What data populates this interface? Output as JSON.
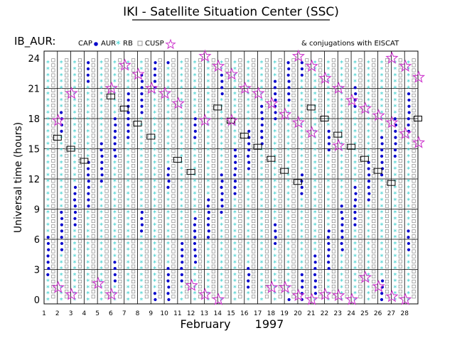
{
  "chart_data": {
    "type": "scatter",
    "title": "IKI - Satellite Situation Center (SSC)",
    "subtitle": "IB_AUR:",
    "ylabel": "Universal time (hours)",
    "xlabel": "February",
    "year": "1997",
    "ylim": [
      0,
      24
    ],
    "xlim": [
      1,
      28
    ],
    "yticks": [
      "0",
      "3",
      "6",
      "9",
      "12",
      "15",
      "18",
      "21",
      "24"
    ],
    "xticks": [
      "1",
      "2",
      "3",
      "4",
      "5",
      "6",
      "7",
      "8",
      "9",
      "10",
      "11",
      "12",
      "13",
      "14",
      "15",
      "16",
      "17",
      "18",
      "19",
      "20",
      "21",
      "22",
      "23",
      "24",
      "25",
      "26",
      "27",
      "28"
    ],
    "legend": {
      "items": [
        {
          "label": "CAP",
          "marker": "dot",
          "color": "#0000cc"
        },
        {
          "label": "AUR",
          "marker": "asterisk",
          "color": "#33cccc"
        },
        {
          "label": "RB",
          "marker": "square",
          "color": "#888888"
        },
        {
          "label": "CUSP",
          "marker": "star",
          "color": "#cc33cc"
        }
      ],
      "conjunction_note": "& conjugations with EISCAT",
      "position": "top"
    },
    "colors": {
      "cap": "#0000cc",
      "aur": "#33cccc",
      "rb": "#888888",
      "cusp": "#cc33cc"
    },
    "cusp_stars": [
      {
        "day": 1.5,
        "t": 17.8
      },
      {
        "day": 1.5,
        "t": 1.2
      },
      {
        "day": 2.5,
        "t": 20.5
      },
      {
        "day": 2.5,
        "t": 0.5
      },
      {
        "day": 4.5,
        "t": 1.6
      },
      {
        "day": 5.5,
        "t": 0.5
      },
      {
        "day": 5.5,
        "t": 21.0
      },
      {
        "day": 6.5,
        "t": 23.3
      },
      {
        "day": 7.5,
        "t": 22.4
      },
      {
        "day": 8.5,
        "t": 21.0
      },
      {
        "day": 9.5,
        "t": 20.5
      },
      {
        "day": 10.5,
        "t": 19.5
      },
      {
        "day": 11.5,
        "t": 1.4
      },
      {
        "day": 12.5,
        "t": 24.2
      },
      {
        "day": 12.5,
        "t": 17.8
      },
      {
        "day": 12.5,
        "t": 0.5
      },
      {
        "day": 13.5,
        "t": 23.2
      },
      {
        "day": 13.5,
        "t": 0.0
      },
      {
        "day": 14.5,
        "t": 22.4
      },
      {
        "day": 14.5,
        "t": 17.8
      },
      {
        "day": 15.5,
        "t": 21.0
      },
      {
        "day": 16.5,
        "t": 20.5
      },
      {
        "day": 17.5,
        "t": 19.5
      },
      {
        "day": 17.5,
        "t": 1.2
      },
      {
        "day": 18.5,
        "t": 18.4
      },
      {
        "day": 18.5,
        "t": 1.2
      },
      {
        "day": 19.5,
        "t": 24.2
      },
      {
        "day": 19.5,
        "t": 17.6
      },
      {
        "day": 19.5,
        "t": 0.4
      },
      {
        "day": 20.5,
        "t": 23.2
      },
      {
        "day": 20.5,
        "t": 16.6
      },
      {
        "day": 20.5,
        "t": 0.0
      },
      {
        "day": 21.5,
        "t": 22.0
      },
      {
        "day": 21.5,
        "t": 0.5
      },
      {
        "day": 22.5,
        "t": 21.0
      },
      {
        "day": 22.5,
        "t": 15.3
      },
      {
        "day": 22.5,
        "t": 0.4
      },
      {
        "day": 23.5,
        "t": 19.8
      },
      {
        "day": 23.5,
        "t": 0.0
      },
      {
        "day": 24.5,
        "t": 19.0
      },
      {
        "day": 24.5,
        "t": 2.2
      },
      {
        "day": 25.5,
        "t": 18.3
      },
      {
        "day": 25.5,
        "t": 1.3
      },
      {
        "day": 26.5,
        "t": 24.0
      },
      {
        "day": 26.5,
        "t": 17.6
      },
      {
        "day": 26.5,
        "t": 0.3
      },
      {
        "day": 27.5,
        "t": 23.2
      },
      {
        "day": 27.5,
        "t": 16.5
      },
      {
        "day": 27.5,
        "t": 0.0
      },
      {
        "day": 28.5,
        "t": 22.1
      },
      {
        "day": 28.5,
        "t": 15.6
      }
    ],
    "cusp_boxes": [
      {
        "day": 1.5,
        "t": 16.1
      },
      {
        "day": 2.5,
        "t": 15.0
      },
      {
        "day": 3.5,
        "t": 13.8
      },
      {
        "day": 5.5,
        "t": 20.2
      },
      {
        "day": 6.5,
        "t": 19.0
      },
      {
        "day": 7.5,
        "t": 17.5
      },
      {
        "day": 8.5,
        "t": 16.2
      },
      {
        "day": 10.5,
        "t": 13.9
      },
      {
        "day": 11.5,
        "t": 12.7
      },
      {
        "day": 13.5,
        "t": 19.1
      },
      {
        "day": 14.5,
        "t": 17.8
      },
      {
        "day": 15.5,
        "t": 16.3
      },
      {
        "day": 16.5,
        "t": 15.2
      },
      {
        "day": 17.5,
        "t": 14.0
      },
      {
        "day": 18.5,
        "t": 12.8
      },
      {
        "day": 19.5,
        "t": 11.7
      },
      {
        "day": 20.5,
        "t": 19.1
      },
      {
        "day": 21.5,
        "t": 18.0
      },
      {
        "day": 22.5,
        "t": 16.4
      },
      {
        "day": 23.5,
        "t": 15.2
      },
      {
        "day": 24.5,
        "t": 14.0
      },
      {
        "day": 25.5,
        "t": 12.8
      },
      {
        "day": 26.5,
        "t": 11.6
      },
      {
        "day": 28.5,
        "t": 18.0
      }
    ]
  }
}
